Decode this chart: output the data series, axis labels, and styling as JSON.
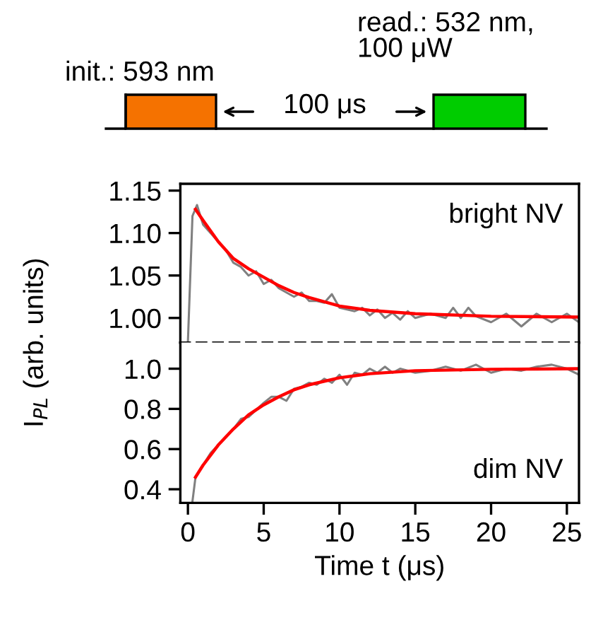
{
  "chart_data": [
    {
      "type": "other",
      "annotations": [
        "init.: 593 nm",
        "read.: 532 nm,\n100 μW",
        "100 μs"
      ],
      "colors": [
        "#f57200",
        "#00cc00"
      ]
    },
    {
      "type": "line",
      "xlim": [
        -0.5,
        25.8
      ],
      "ylim": [
        0.971,
        1.158
      ],
      "yticks": [
        {
          "value": 1.0,
          "label": "1.00"
        },
        {
          "value": 1.05,
          "label": "1.05"
        },
        {
          "value": 1.1,
          "label": "1.10"
        },
        {
          "value": 1.15,
          "label": "1.15"
        }
      ],
      "xticks": [
        0,
        5,
        10,
        15,
        20,
        25
      ],
      "tick_labels": "y",
      "grid": false,
      "legend": false,
      "annotations": [
        "bright NV"
      ],
      "series": [
        {
          "color": "#808080",
          "x": [
            0,
            0.3,
            0.6,
            1,
            1.5,
            2,
            2.5,
            3,
            3.5,
            4,
            4.5,
            5,
            5.5,
            6,
            7,
            7.5,
            8,
            8.5,
            9,
            9.5,
            10,
            10.5,
            11,
            11.5,
            12,
            12.5,
            13,
            13.5,
            14,
            14.5,
            15,
            16,
            17,
            17.5,
            18,
            18.5,
            19,
            20,
            21,
            22,
            23,
            24,
            25,
            25.8
          ],
          "values": [
            0.972,
            1.12,
            1.133,
            1.11,
            1.1,
            1.09,
            1.08,
            1.065,
            1.06,
            1.05,
            1.055,
            1.04,
            1.045,
            1.035,
            1.025,
            1.03,
            1.02,
            1.02,
            1.018,
            1.028,
            1.012,
            1.01,
            1.008,
            1.012,
            1.003,
            1.01,
            1.0,
            1.006,
            0.998,
            1.008,
            1.0,
            1.005,
            1.0,
            1.012,
            1.0,
            1.012,
            1.002,
            0.995,
            1.005,
            0.99,
            1.005,
            0.995,
            1.005,
            0.995
          ]
        },
        {
          "color": "#ff0000",
          "x": [
            0.5,
            1,
            2,
            3,
            4,
            5,
            6,
            7,
            8,
            10,
            12,
            15,
            20,
            25.8
          ],
          "values": [
            1.128,
            1.115,
            1.09,
            1.07,
            1.058,
            1.048,
            1.038,
            1.03,
            1.024,
            1.014,
            1.009,
            1.005,
            1.002,
            1.001
          ]
        }
      ]
    },
    {
      "type": "line",
      "xlim": [
        -0.5,
        25.8
      ],
      "ylim": [
        0.332,
        1.13
      ],
      "yticks": [
        {
          "value": 0.4,
          "label": "0.4"
        },
        {
          "value": 0.6,
          "label": "0.6"
        },
        {
          "value": 0.8,
          "label": "0.8"
        },
        {
          "value": 1.0,
          "label": "1.0"
        }
      ],
      "xticks": [
        0,
        5,
        10,
        15,
        20,
        25
      ],
      "xlabel": "Time t (μs)",
      "ylabel": "I$_{PL}$ (arb. units)",
      "grid": false,
      "legend": false,
      "annotations": [
        "dim NV"
      ],
      "series": [
        {
          "color": "#808080",
          "x": [
            0.3,
            0.5,
            1,
            1.5,
            2,
            2.5,
            3,
            3.5,
            4,
            5,
            5.5,
            6,
            6.5,
            7,
            7.5,
            8,
            8.5,
            9,
            9.5,
            10,
            10.5,
            11,
            11.5,
            12,
            12.5,
            13,
            13.5,
            14,
            15,
            16,
            17,
            18,
            19,
            20,
            21,
            22,
            23,
            24,
            25,
            25.8
          ],
          "values": [
            0.34,
            0.46,
            0.52,
            0.58,
            0.62,
            0.66,
            0.7,
            0.75,
            0.76,
            0.83,
            0.86,
            0.86,
            0.84,
            0.9,
            0.91,
            0.93,
            0.92,
            0.95,
            0.93,
            0.97,
            0.92,
            0.98,
            0.97,
            1.0,
            0.98,
            1.01,
            0.98,
            1.0,
            0.98,
            0.99,
            1.01,
            0.99,
            1.02,
            0.98,
            1.0,
            0.99,
            1.01,
            1.02,
            1.0,
            0.97
          ]
        },
        {
          "color": "#ff0000",
          "x": [
            0.5,
            1,
            2,
            3,
            4,
            5,
            6,
            7,
            8,
            10,
            12,
            15,
            20,
            25.8
          ],
          "values": [
            0.46,
            0.52,
            0.62,
            0.7,
            0.77,
            0.82,
            0.86,
            0.895,
            0.92,
            0.955,
            0.975,
            0.99,
            0.997,
            1.0
          ]
        }
      ]
    }
  ]
}
